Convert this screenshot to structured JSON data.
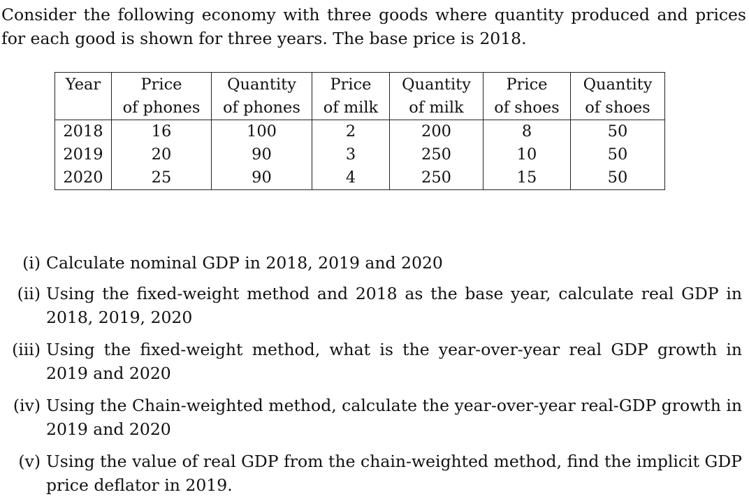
{
  "intro": {
    "text": "Consider the following economy with three goods where quantity produced and prices for each good is shown for three years. The base price is 2018."
  },
  "table": {
    "headers": [
      {
        "line1": "Year",
        "line2": ""
      },
      {
        "line1": "Price",
        "line2": "of phones"
      },
      {
        "line1": "Quantity",
        "line2": "of phones"
      },
      {
        "line1": "Price",
        "line2": "of milk"
      },
      {
        "line1": "Quantity",
        "line2": "of milk"
      },
      {
        "line1": "Price",
        "line2": "of shoes"
      },
      {
        "line1": "Quantity",
        "line2": "of shoes"
      }
    ],
    "rows": [
      [
        "2018",
        "16",
        "100",
        "2",
        "200",
        "8",
        "50"
      ],
      [
        "2019",
        "20",
        "90",
        "3",
        "250",
        "10",
        "50"
      ],
      [
        "2020",
        "25",
        "90",
        "4",
        "250",
        "15",
        "50"
      ]
    ]
  },
  "questions": [
    {
      "number": "(i)",
      "text": "Calculate nominal GDP in 2018, 2019 and 2020"
    },
    {
      "number": "(ii)",
      "text": "Using the fixed-weight method and 2018 as the base year, calculate real GDP in 2018, 2019, 2020"
    },
    {
      "number": "(iii)",
      "text": "Using the fixed-weight method, what is the year-over-year real GDP growth in 2019 and 2020"
    },
    {
      "number": "(iv)",
      "text": "Using the Chain-weighted method, calculate the year-over-year real-GDP growth in 2019 and 2020"
    },
    {
      "number": "(v)",
      "text": "Using the value of real GDP from the chain-weighted method, find the implicit GDP price deflator in 2019."
    }
  ]
}
